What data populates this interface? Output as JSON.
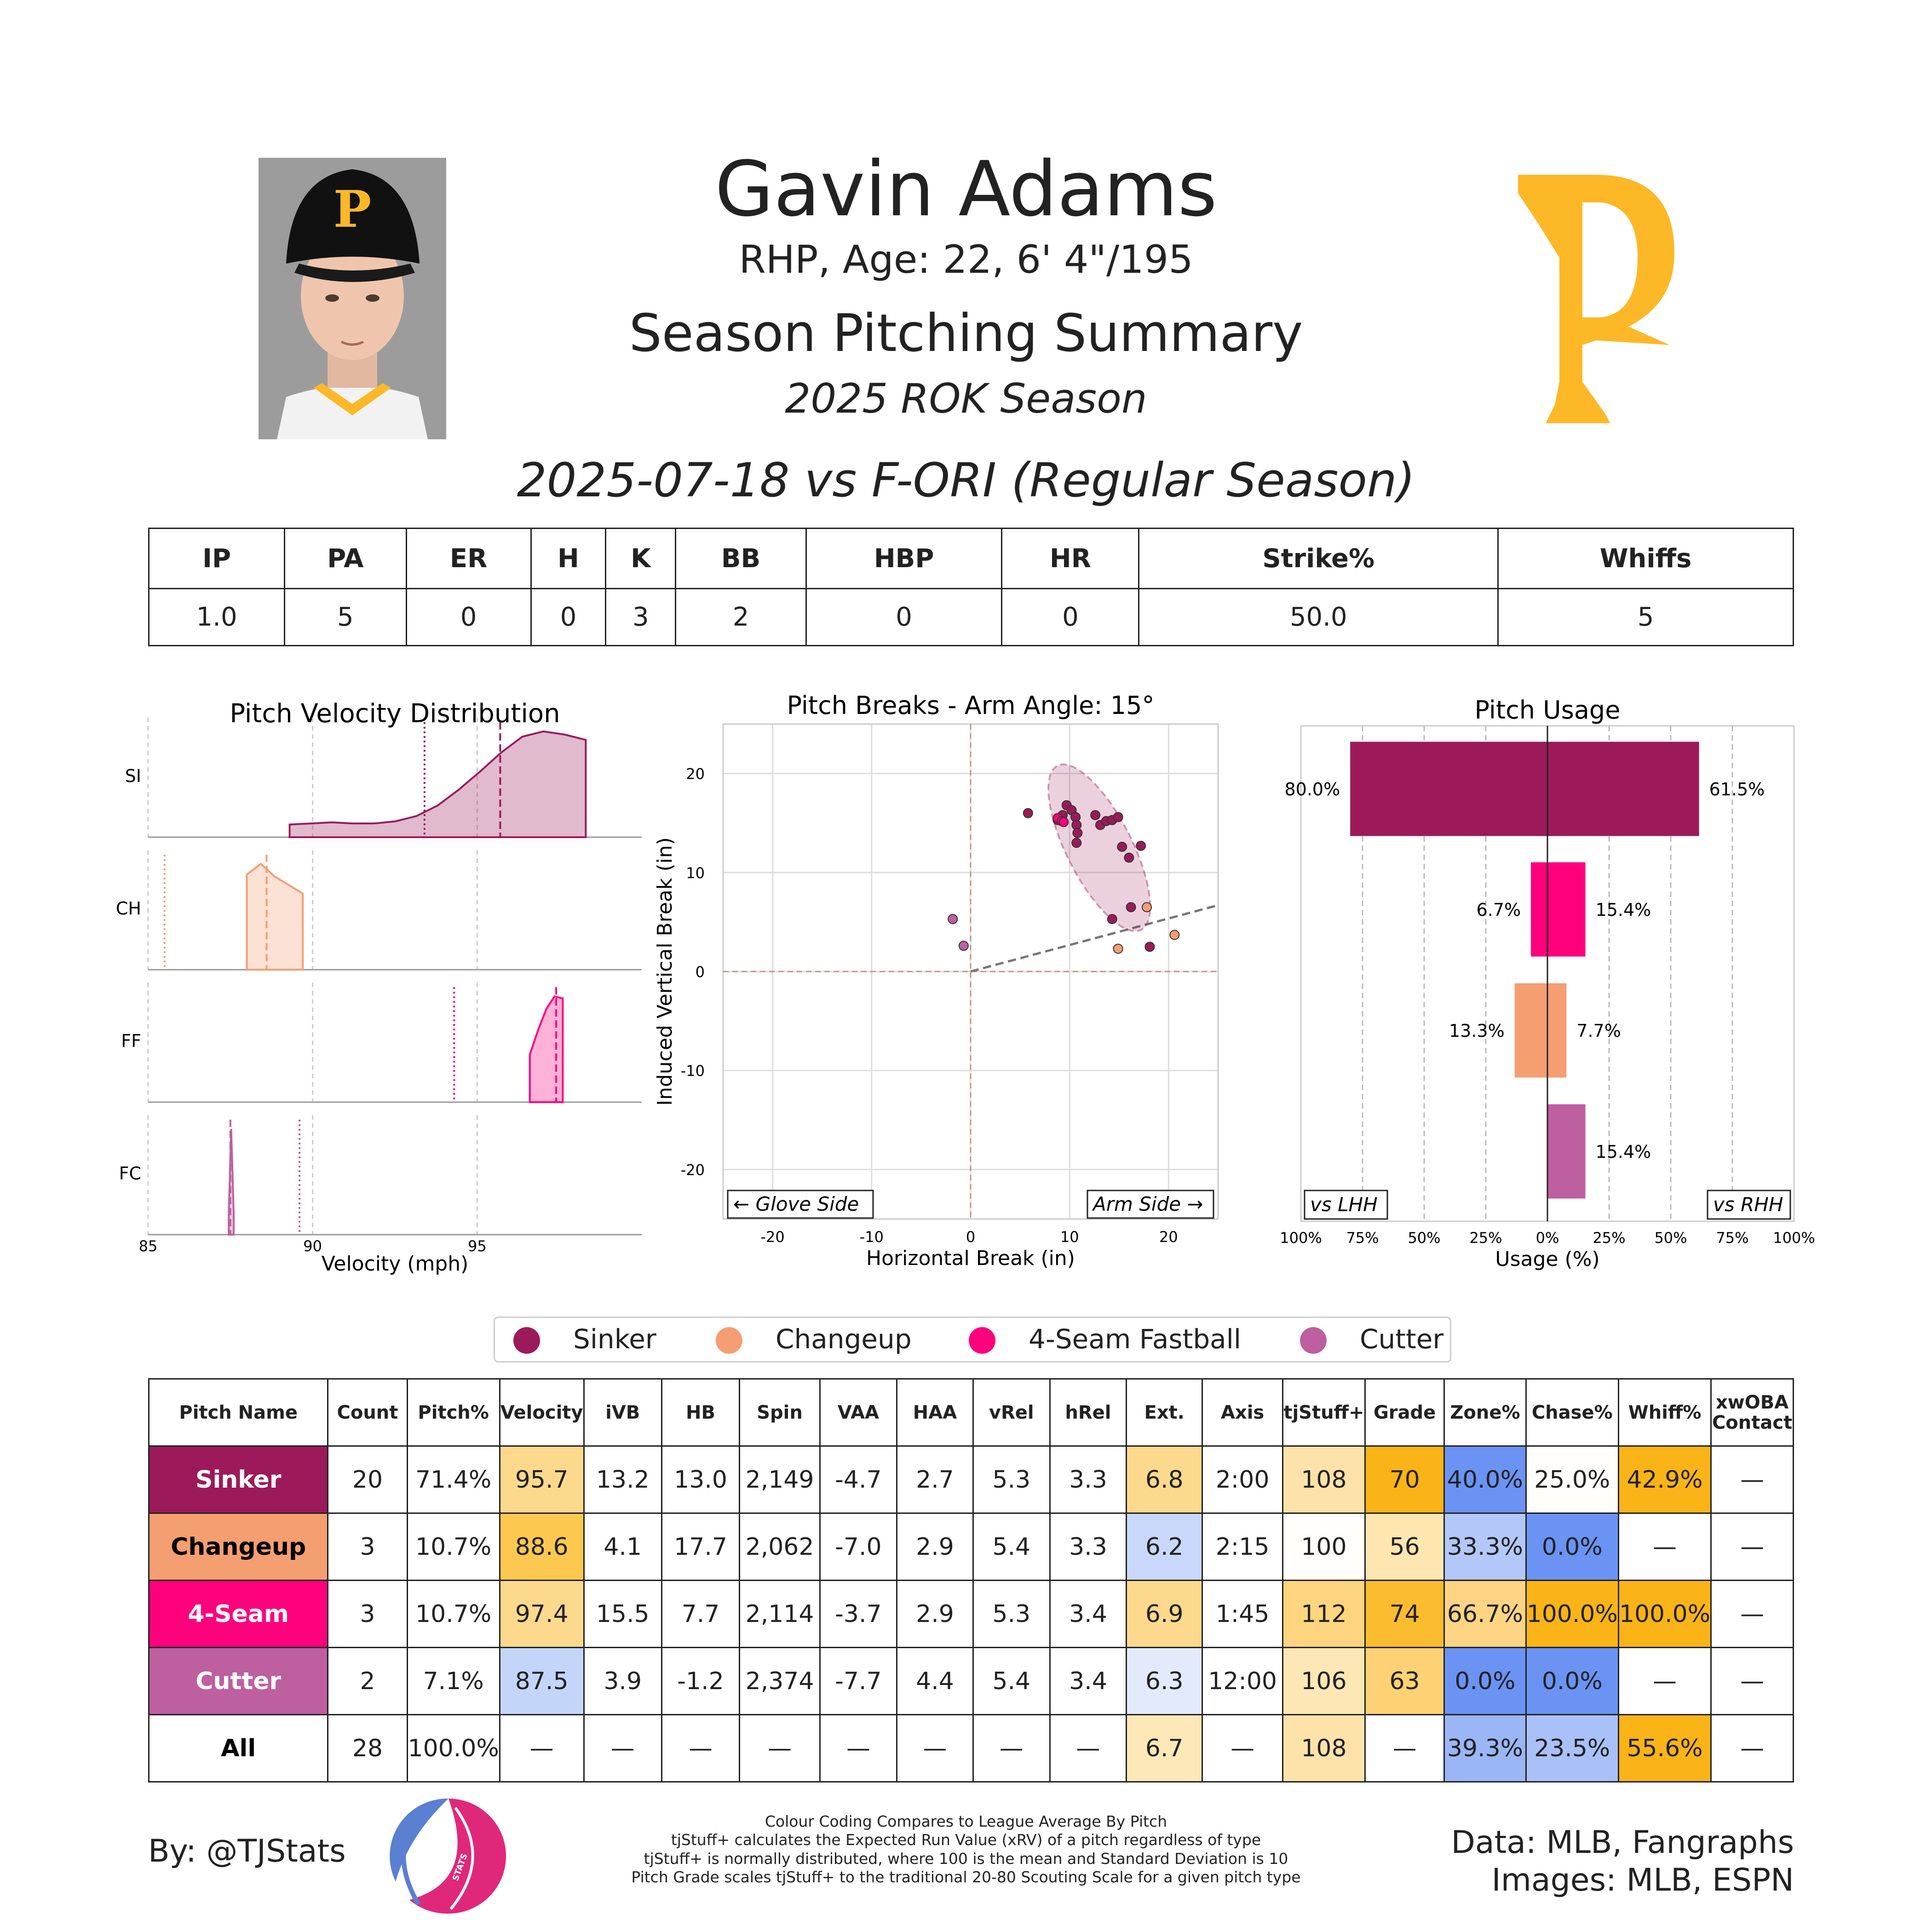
{
  "header": {
    "name": "Gavin Adams",
    "bio": "RHP, Age: 22, 6' 4\"/195",
    "summary_title": "Season Pitching Summary",
    "season": "2025 ROK Season",
    "game": "2025-07-18 vs F-ORI (Regular Season)"
  },
  "statline": {
    "headers": [
      "IP",
      "PA",
      "ER",
      "H",
      "K",
      "BB",
      "HBP",
      "HR",
      "Strike%",
      "Whiffs"
    ],
    "values": [
      "1.0",
      "5",
      "0",
      "0",
      "3",
      "2",
      "0",
      "0",
      "50.0",
      "5"
    ]
  },
  "colors": {
    "Sinker": "#9c1a5a",
    "Changeup": "#f49e72",
    "FourSeam": "#ff007d",
    "Cutter": "#be5fa0",
    "team_gold": "#fdb827"
  },
  "chart_data": [
    {
      "type": "area",
      "title": "Pitch Velocity Distribution",
      "xlabel": "Velocity (mph)",
      "xlim": [
        85,
        100
      ],
      "xticks": [
        "85",
        "90",
        "95"
      ],
      "rows": [
        {
          "label": "SI",
          "color": "#9c1a5a",
          "range": [
            89.3,
            98.3
          ],
          "shape": [
            0.12,
            0.13,
            0.14,
            0.13,
            0.13,
            0.15,
            0.2,
            0.3,
            0.45,
            0.62,
            0.8,
            0.95,
            1.0,
            0.97,
            0.92
          ],
          "mean": 95.7,
          "league": 93.4
        },
        {
          "label": "CH",
          "color": "#f49e72",
          "range": [
            88.0,
            89.7
          ],
          "shape": [
            0.9,
            1.0,
            0.88,
            0.8,
            0.72
          ],
          "mean": 88.6,
          "league": 85.5
        },
        {
          "label": "FF",
          "color": "#ff007d",
          "range": [
            96.6,
            97.6
          ],
          "shape": [
            0.45,
            0.68,
            0.88,
            1.0,
            0.98
          ],
          "mean": 97.4,
          "league": 94.3
        },
        {
          "label": "FC",
          "color": "#be5fa0",
          "range": [
            87.45,
            87.6
          ],
          "shape": [
            0.2,
            1.0,
            0.2
          ],
          "mean": 87.5,
          "league": 89.6
        }
      ]
    },
    {
      "type": "scatter",
      "title": "Pitch Breaks - Arm Angle: 15°",
      "xlabel": "Horizontal Break (in)",
      "ylabel": "Induced Vertical Break (in)",
      "xlim": [
        -25,
        25
      ],
      "ylim": [
        -25,
        25
      ],
      "xticks": [
        "-20",
        "-10",
        "0",
        "10",
        "20"
      ],
      "yticks": [
        "20",
        "10",
        "0",
        "-10",
        "-20"
      ],
      "glove_label": "← Glove Side",
      "arm_label": "Arm Side →",
      "arm_angle_deg": 15,
      "points": [
        {
          "pitch": "Sinker",
          "x": 5.8,
          "y": 16.0
        },
        {
          "pitch": "Sinker",
          "x": 9.7,
          "y": 16.8
        },
        {
          "pitch": "Sinker",
          "x": 10.2,
          "y": 16.3
        },
        {
          "pitch": "Sinker",
          "x": 10.6,
          "y": 15.6
        },
        {
          "pitch": "Sinker",
          "x": 10.7,
          "y": 14.8
        },
        {
          "pitch": "Sinker",
          "x": 10.8,
          "y": 14.0
        },
        {
          "pitch": "Sinker",
          "x": 10.7,
          "y": 13.0
        },
        {
          "pitch": "Sinker",
          "x": 12.6,
          "y": 15.8
        },
        {
          "pitch": "Sinker",
          "x": 13.1,
          "y": 14.8
        },
        {
          "pitch": "Sinker",
          "x": 13.7,
          "y": 15.2
        },
        {
          "pitch": "Sinker",
          "x": 14.3,
          "y": 15.3
        },
        {
          "pitch": "Sinker",
          "x": 14.9,
          "y": 15.6
        },
        {
          "pitch": "Sinker",
          "x": 15.3,
          "y": 12.6
        },
        {
          "pitch": "Sinker",
          "x": 16.0,
          "y": 11.5
        },
        {
          "pitch": "Sinker",
          "x": 17.2,
          "y": 12.7
        },
        {
          "pitch": "Sinker",
          "x": 14.3,
          "y": 5.3
        },
        {
          "pitch": "Sinker",
          "x": 16.2,
          "y": 6.5
        },
        {
          "pitch": "Sinker",
          "x": 18.1,
          "y": 2.5
        },
        {
          "pitch": "Sinker",
          "x": 9.3,
          "y": 15.8
        },
        {
          "pitch": "Sinker",
          "x": 8.8,
          "y": 15.3
        },
        {
          "pitch": "Changeup",
          "x": 17.8,
          "y": 6.5
        },
        {
          "pitch": "Changeup",
          "x": 20.6,
          "y": 3.7
        },
        {
          "pitch": "Changeup",
          "x": 14.9,
          "y": 2.3
        },
        {
          "pitch": "4-Seam Fastball",
          "x": 8.8,
          "y": 15.5
        },
        {
          "pitch": "4-Seam Fastball",
          "x": 9.2,
          "y": 15.2
        },
        {
          "pitch": "4-Seam Fastball",
          "x": 9.4,
          "y": 15.1
        },
        {
          "pitch": "Cutter",
          "x": -1.8,
          "y": 5.3
        },
        {
          "pitch": "Cutter",
          "x": -0.7,
          "y": 2.6
        }
      ],
      "ellipse": {
        "pitch": "Sinker",
        "center": [
          13.0,
          12.5
        ],
        "rx_in": 3.3,
        "ry_in": 9.3,
        "angle_deg": -27
      }
    },
    {
      "type": "bar",
      "title": "Pitch Usage",
      "xlabel": "Usage (%)",
      "xlim": [
        -100,
        100
      ],
      "xticks": [
        "100%",
        "75%",
        "50%",
        "25%",
        "0%",
        "25%",
        "50%",
        "75%",
        "100%"
      ],
      "lhh_label": "vs LHH",
      "rhh_label": "vs RHH",
      "categories": [
        "Sinker",
        "4-Seam Fastball",
        "Changeup",
        "Cutter"
      ],
      "series": [
        {
          "name": "vs LHH",
          "values": [
            80.0,
            6.7,
            13.3,
            0.0
          ],
          "labels": [
            "80.0%",
            "6.7%",
            "13.3%",
            ""
          ]
        },
        {
          "name": "vs RHH",
          "values": [
            61.5,
            15.4,
            7.7,
            15.4
          ],
          "labels": [
            "61.5%",
            "15.4%",
            "7.7%",
            "15.4%"
          ]
        }
      ],
      "bar_colors": [
        "#9c1a5a",
        "#ff007d",
        "#f49e72",
        "#be5fa0"
      ]
    }
  ],
  "legend": [
    {
      "name": "Sinker",
      "color": "#9c1a5a"
    },
    {
      "name": "Changeup",
      "color": "#f49e72"
    },
    {
      "name": "4-Seam Fastball",
      "color": "#ff007d"
    },
    {
      "name": "Cutter",
      "color": "#be5fa0"
    }
  ],
  "pitch_table": {
    "headers": [
      "Pitch Name",
      "Count",
      "Pitch%",
      "Velocity",
      "iVB",
      "HB",
      "Spin",
      "VAA",
      "HAA",
      "vRel",
      "hRel",
      "Ext.",
      "Axis",
      "tjStuff+",
      "Grade",
      "Zone%",
      "Chase%",
      "Whiff%",
      "xwOBA Contact"
    ],
    "rows": [
      {
        "name": "Sinker",
        "name_bg": "#9c1a5a",
        "name_fg": "#ffffff",
        "cells": [
          "20",
          "71.4%",
          "95.7",
          "13.2",
          "13.0",
          "2,149",
          "-4.7",
          "2.7",
          "5.3",
          "3.3",
          "6.8",
          "2:00",
          "108",
          "70",
          "40.0%",
          "25.0%",
          "42.9%",
          "—"
        ],
        "bgs": [
          "#fff",
          "#fff",
          "#fcd98d",
          "#fff",
          "#fff",
          "#fff",
          "#fff",
          "#fff",
          "#fff",
          "#fff",
          "#fcd98d",
          "#fff",
          "#fde3a9",
          "#fbb417",
          "#6b93f3",
          "#fffefb",
          "#fbb417",
          "#fff"
        ]
      },
      {
        "name": "Changeup",
        "name_bg": "#f49e72",
        "name_fg": "#000000",
        "cells": [
          "3",
          "10.7%",
          "88.6",
          "4.1",
          "17.7",
          "2,062",
          "-7.0",
          "2.9",
          "5.4",
          "3.3",
          "6.2",
          "2:15",
          "100",
          "56",
          "33.3%",
          "0.0%",
          "—",
          "—"
        ],
        "bgs": [
          "#fff",
          "#fff",
          "#fcc850",
          "#fff",
          "#fff",
          "#fff",
          "#fff",
          "#fff",
          "#fff",
          "#fff",
          "#c9d8fa",
          "#fff",
          "#fffefb",
          "#fde6b0",
          "#b3c8f9",
          "#6b93f3",
          "#fff",
          "#fff"
        ]
      },
      {
        "name": "4-Seam",
        "name_bg": "#ff007d",
        "name_fg": "#ffffff",
        "cells": [
          "3",
          "10.7%",
          "97.4",
          "15.5",
          "7.7",
          "2,114",
          "-3.7",
          "2.9",
          "5.3",
          "3.4",
          "6.9",
          "1:45",
          "112",
          "74",
          "66.7%",
          "100.0%",
          "100.0%",
          "—"
        ],
        "bgs": [
          "#fff",
          "#fff",
          "#fcd98d",
          "#fff",
          "#fff",
          "#fff",
          "#fff",
          "#fff",
          "#fff",
          "#fff",
          "#fcd98d",
          "#fff",
          "#fdd57f",
          "#fbbc30",
          "#fcd483",
          "#fbb417",
          "#fbb417",
          "#fff"
        ]
      },
      {
        "name": "Cutter",
        "name_bg": "#be5fa0",
        "name_fg": "#ffffff",
        "cells": [
          "2",
          "7.1%",
          "87.5",
          "3.9",
          "-1.2",
          "2,374",
          "-7.7",
          "4.4",
          "5.4",
          "3.4",
          "6.3",
          "12:00",
          "106",
          "63",
          "0.0%",
          "0.0%",
          "—",
          "—"
        ],
        "bgs": [
          "#fff",
          "#fff",
          "#c4d5fa",
          "#fff",
          "#fff",
          "#fff",
          "#fff",
          "#fff",
          "#fff",
          "#fff",
          "#e3eafc",
          "#fff",
          "#fde7b4",
          "#fdd174",
          "#6b93f3",
          "#6b93f3",
          "#fff",
          "#fff"
        ]
      },
      {
        "name": "All",
        "name_bg": "#ffffff",
        "name_fg": "#000000",
        "cells": [
          "28",
          "100.0%",
          "—",
          "—",
          "—",
          "—",
          "—",
          "—",
          "—",
          "—",
          "6.7",
          "—",
          "108",
          "—",
          "39.3%",
          "23.5%",
          "55.6%",
          "—"
        ],
        "bgs": [
          "#fff",
          "#fff",
          "#fff",
          "#fff",
          "#fff",
          "#fff",
          "#fff",
          "#fff",
          "#fff",
          "#fff",
          "#fde8b8",
          "#fff",
          "#fde3a9",
          "#fff",
          "#9ab6f6",
          "#a9c1f8",
          "#fbb417",
          "#fff"
        ]
      }
    ]
  },
  "footer": {
    "by": "By: @TJStats",
    "logo_text": "STATS",
    "notes": [
      "Colour Coding Compares to League Average By Pitch",
      "tjStuff+ calculates the Expected Run Value (xRV) of a pitch regardless of type",
      "tjStuff+ is normally distributed, where 100 is the mean and Standard Deviation is 10",
      "Pitch Grade scales tjStuff+ to the traditional 20-80 Scouting Scale for a given pitch type"
    ],
    "data_credit": "Data: MLB, Fangraphs",
    "image_credit": "Images: MLB, ESPN"
  }
}
